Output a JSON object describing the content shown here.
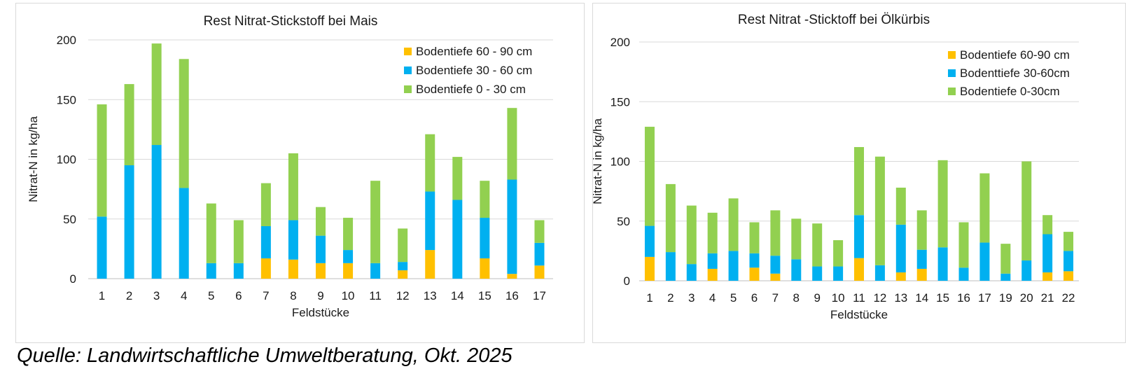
{
  "colors": {
    "deep": "#FFC000",
    "mid": "#00B0F0",
    "top": "#92D050",
    "grid": "#d9d9d9",
    "axis": "#bfbfbf"
  },
  "source": "Quelle: Landwirtschaftliche Umweltberatung, Okt. 2025",
  "chart_data": [
    {
      "type": "bar",
      "stacked": true,
      "title": "Rest Nitrat-Stickstoff bei Mais",
      "xlabel": "Feldstücke",
      "ylabel": "Nitrat-N in kg/ha",
      "ylim": [
        0,
        200
      ],
      "yticks": [
        0,
        50,
        100,
        150,
        200
      ],
      "grid": true,
      "legend_position": "top-right",
      "categories": [
        "1",
        "2",
        "3",
        "4",
        "5",
        "6",
        "7",
        "8",
        "9",
        "10",
        "11",
        "12",
        "13",
        "14",
        "15",
        "16",
        "17"
      ],
      "series": [
        {
          "name": "Bodentiefe 60 - 90 cm",
          "color": "#FFC000",
          "values": [
            0,
            0,
            0,
            0,
            0,
            0,
            17,
            16,
            13,
            13,
            0,
            7,
            24,
            0,
            17,
            4,
            11
          ]
        },
        {
          "name": "Bodentiefe 30 - 60 cm",
          "color": "#00B0F0",
          "values": [
            52,
            95,
            112,
            76,
            13,
            13,
            27,
            33,
            23,
            11,
            13,
            7,
            49,
            66,
            34,
            79,
            19
          ]
        },
        {
          "name": "Bodentiefe 0 - 30 cm",
          "color": "#92D050",
          "values": [
            94,
            68,
            85,
            108,
            50,
            36,
            36,
            56,
            24,
            27,
            69,
            28,
            48,
            36,
            31,
            60,
            19
          ]
        }
      ]
    },
    {
      "type": "bar",
      "stacked": true,
      "title": "Rest Nitrat -Sticktoff bei Ölkürbis",
      "xlabel": "Feldstücke",
      "ylabel": "Nitrat-N in kg/ha",
      "ylim": [
        0,
        200
      ],
      "yticks": [
        0,
        50,
        100,
        150,
        200
      ],
      "grid": true,
      "legend_position": "top-right",
      "categories": [
        "1",
        "2",
        "3",
        "4",
        "5",
        "6",
        "7",
        "8",
        "9",
        "10",
        "11",
        "12",
        "13",
        "14",
        "15",
        "16",
        "17",
        "19",
        "20",
        "21",
        "22"
      ],
      "series": [
        {
          "name": "Bodentiefe 60-90 cm",
          "color": "#FFC000",
          "values": [
            20,
            0,
            0,
            10,
            0,
            11,
            6,
            0,
            0,
            0,
            19,
            0,
            7,
            10,
            0,
            0,
            0,
            0,
            0,
            7,
            8
          ]
        },
        {
          "name": "Bodenttiefe 30-60cm",
          "color": "#00B0F0",
          "values": [
            26,
            24,
            14,
            13,
            25,
            12,
            15,
            18,
            12,
            12,
            36,
            13,
            40,
            16,
            28,
            11,
            32,
            6,
            17,
            32,
            17
          ]
        },
        {
          "name": "Bodentiefe 0-30cm",
          "color": "#92D050",
          "values": [
            83,
            57,
            49,
            34,
            44,
            26,
            38,
            34,
            36,
            22,
            57,
            91,
            31,
            33,
            73,
            38,
            58,
            25,
            83,
            16,
            16
          ]
        }
      ]
    }
  ]
}
